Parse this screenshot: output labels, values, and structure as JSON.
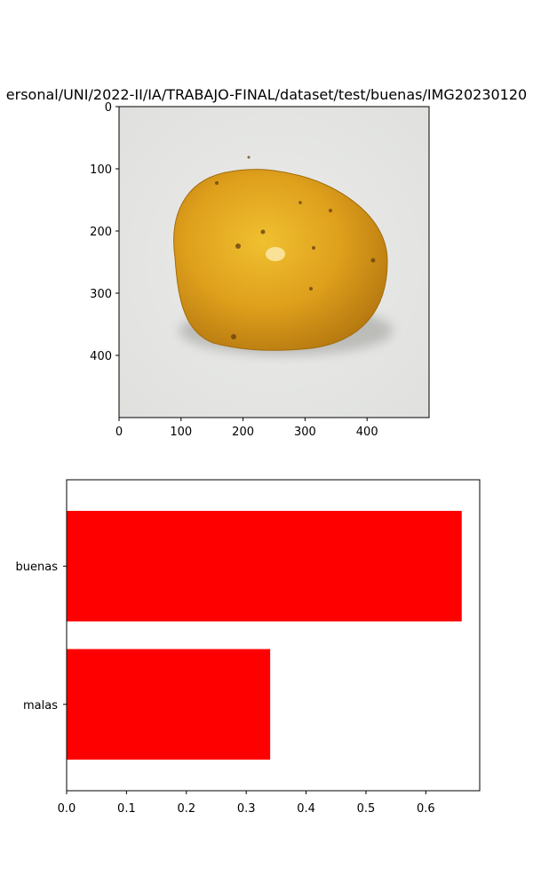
{
  "chart_data": [
    {
      "type": "image",
      "title": "ersonal/UNI/2022-II/IA/TRABAJO-FINAL/dataset/test/buenas/IMG20230120",
      "xlim": [
        0,
        500
      ],
      "ylim": [
        500,
        0
      ],
      "xticks": [
        "0",
        "100",
        "200",
        "300",
        "400"
      ],
      "yticks": [
        "0",
        "100",
        "200",
        "300",
        "400"
      ],
      "image_subject": "orange-fruit-on-white-background",
      "fruit_color": "#e0a020",
      "background_color": "#e8e9e6"
    },
    {
      "type": "bar",
      "orientation": "horizontal",
      "categories": [
        "buenas",
        "malas"
      ],
      "values": [
        0.66,
        0.34
      ],
      "xlim": [
        0,
        0.69
      ],
      "xticks": [
        "0.0",
        "0.1",
        "0.2",
        "0.3",
        "0.4",
        "0.5",
        "0.6"
      ],
      "bar_color": "#ff0000"
    }
  ]
}
